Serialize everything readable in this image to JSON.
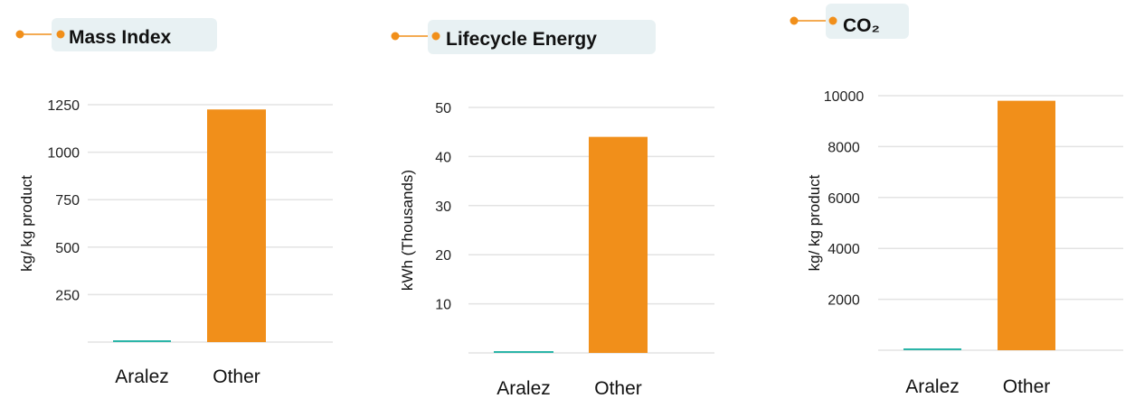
{
  "colors": {
    "accent": "#f18f1a",
    "aralez": "#2bb5a8",
    "title_bg": "#e8f1f3",
    "grid": "#e3e3e3"
  },
  "chart_data": [
    {
      "type": "bar",
      "title": "Mass Index",
      "ylabel": "kg/ kg product",
      "categories": [
        "Aralez",
        "Other"
      ],
      "values": [
        5,
        1225
      ],
      "ylim": [
        0,
        1250
      ],
      "yticks": [
        250,
        500,
        750,
        1000,
        1250
      ],
      "grid": true
    },
    {
      "type": "bar",
      "title": "Lifecycle Energy",
      "ylabel": "kWh (Thousands)",
      "categories": [
        "Aralez",
        "Other"
      ],
      "values": [
        0.3,
        44
      ],
      "ylim": [
        0,
        50
      ],
      "yticks": [
        10,
        20,
        30,
        40,
        50
      ],
      "grid": true
    },
    {
      "type": "bar",
      "title": "CO₂",
      "ylabel": "kg/ kg product",
      "categories": [
        "Aralez",
        "Other"
      ],
      "values": [
        50,
        9800
      ],
      "ylim": [
        0,
        10000
      ],
      "yticks": [
        2000,
        4000,
        6000,
        8000,
        10000
      ],
      "grid": true
    }
  ]
}
